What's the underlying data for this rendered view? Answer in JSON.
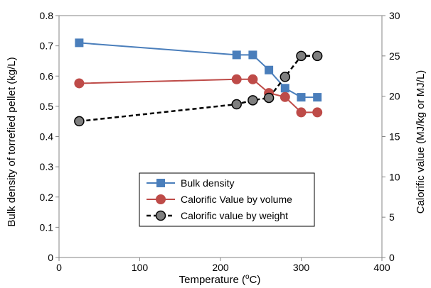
{
  "chart_data": {
    "type": "line",
    "xlabel": "Temperature (",
    "xlabel_super": "o",
    "xlabel_unit": "C)",
    "ylabel": "Bulk density of torrefied pellet (kg/L)",
    "y2label": "Calorific value (MJ/kg or MJ/L)",
    "xlim": [
      0,
      400
    ],
    "ylim": [
      0,
      0.8
    ],
    "y2lim": [
      0,
      30
    ],
    "x_ticks": [
      "0",
      "100",
      "200",
      "300",
      "400"
    ],
    "y_ticks": [
      "0",
      "0.1",
      "0.2",
      "0.3",
      "0.4",
      "0.5",
      "0.6",
      "0.7",
      "0.8"
    ],
    "y2_ticks": [
      "0",
      "5",
      "10",
      "15",
      "20",
      "25",
      "30"
    ],
    "grid": false,
    "legend_position": "center-bottom",
    "series": [
      {
        "name": "Bulk density",
        "axis": "left",
        "color": "#4a7ebb",
        "marker": "square",
        "line_style": "solid",
        "points": [
          [
            25,
            0.71
          ],
          [
            220,
            0.67
          ],
          [
            240,
            0.67
          ],
          [
            260,
            0.62
          ],
          [
            280,
            0.56
          ],
          [
            300,
            0.53
          ],
          [
            320,
            0.53
          ]
        ]
      },
      {
        "name": "Calorific Value by volume",
        "axis": "right",
        "color": "#be4b48",
        "marker": "circle",
        "line_style": "solid",
        "points": [
          [
            25,
            21.6
          ],
          [
            220,
            22.1
          ],
          [
            240,
            22.1
          ],
          [
            260,
            20.4
          ],
          [
            280,
            19.9
          ],
          [
            300,
            18.0
          ],
          [
            320,
            18.0
          ]
        ]
      },
      {
        "name": "Calorific value by weight",
        "axis": "right",
        "color": "#000000",
        "marker_fill": "#7f7f7f",
        "marker": "circle",
        "line_style": "dashed",
        "points": [
          [
            25,
            16.9
          ],
          [
            220,
            19.0
          ],
          [
            240,
            19.5
          ],
          [
            260,
            19.8
          ],
          [
            280,
            22.4
          ],
          [
            300,
            25.0
          ],
          [
            320,
            25.0
          ]
        ]
      }
    ]
  }
}
